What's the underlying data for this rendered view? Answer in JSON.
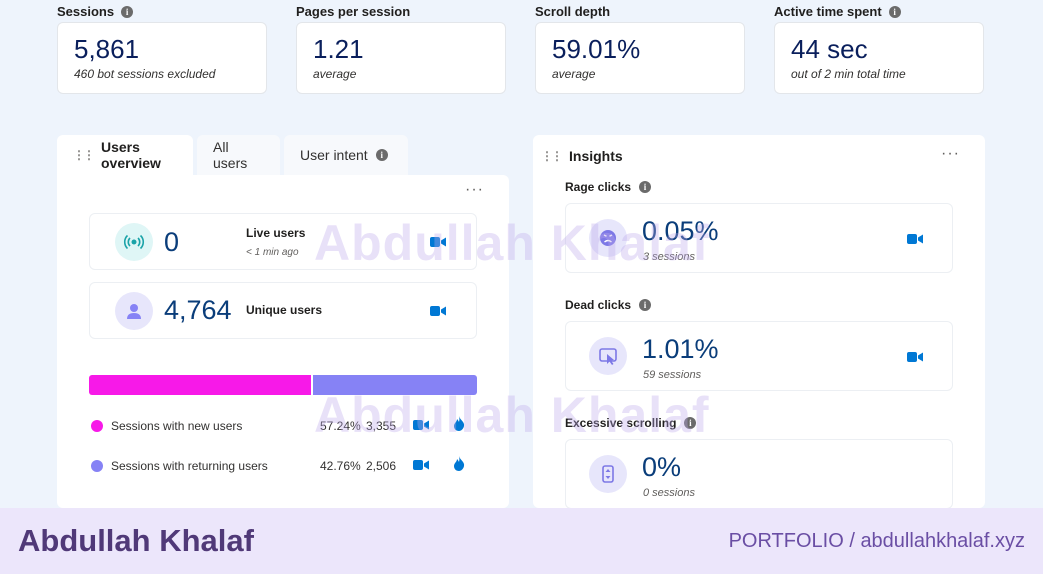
{
  "metrics": [
    {
      "label": "Sessions",
      "value": "5,861",
      "sub": "460 bot sessions excluded",
      "info": true
    },
    {
      "label": "Pages per session",
      "value": "1.21",
      "sub": "average",
      "info": false
    },
    {
      "label": "Scroll depth",
      "value": "59.01%",
      "sub": "average",
      "info": false
    },
    {
      "label": "Active time spent",
      "value": "44 sec",
      "sub": "out of 2 min total time",
      "info": true
    }
  ],
  "tabs": {
    "users_overview": "Users overview",
    "all_users": "All users",
    "user_intent": "User intent"
  },
  "users": {
    "live_value": "0",
    "live_label": "Live users",
    "live_sub": "< 1 min ago",
    "unique_value": "4,764",
    "unique_label": "Unique users",
    "new_share": 0.5724,
    "legend": [
      {
        "label": "Sessions with new users",
        "percent": "57.24%",
        "count": "3,355",
        "color": "#f719e8"
      },
      {
        "label": "Sessions with returning users",
        "percent": "42.76%",
        "count": "2,506",
        "color": "#8682f5"
      }
    ]
  },
  "insights": {
    "title": "Insights",
    "items": [
      {
        "label": "Rage clicks",
        "value": "0.05%",
        "sub": "3 sessions",
        "icon": "angry-face-icon"
      },
      {
        "label": "Dead clicks",
        "value": "1.01%",
        "sub": "59 sessions",
        "icon": "dead-click-icon"
      },
      {
        "label": "Excessive scrolling",
        "value": "0%",
        "sub": "0 sessions",
        "icon": "scroll-icon"
      }
    ]
  },
  "watermark": "Abdullah Khalaf",
  "footer": {
    "name": "Abdullah Khalaf",
    "link": "PORTFOLIO  /  abdullahkhalaf.xyz"
  },
  "colors": {
    "accent": "#0078d4",
    "new_users": "#f719e8",
    "returning_users": "#8682f5",
    "value_text": "#0a3d7a"
  }
}
